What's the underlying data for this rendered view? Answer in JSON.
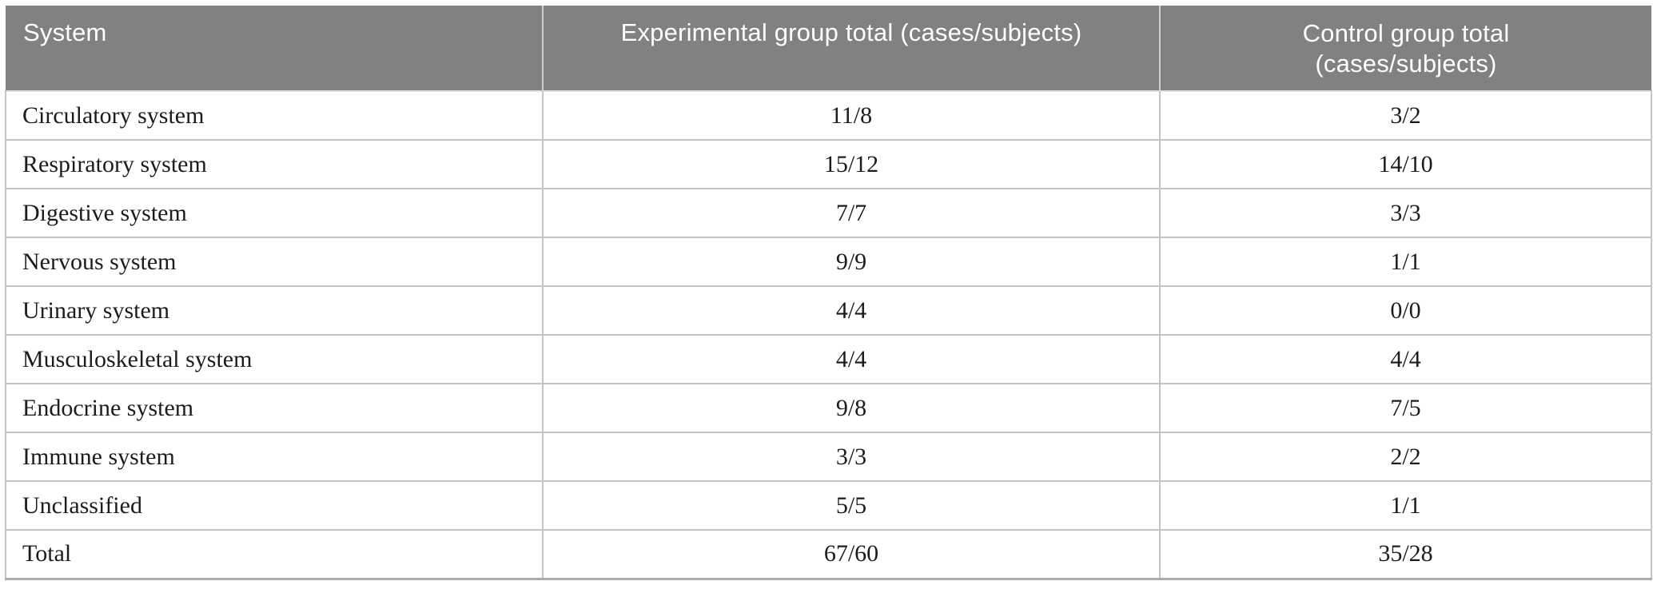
{
  "table": {
    "columns": [
      {
        "label": "System"
      },
      {
        "label": "Experimental group total (cases/subjects)"
      },
      {
        "label": "Control group total (cases/subjects)"
      }
    ],
    "rows": [
      {
        "system": "Circulatory system",
        "experimental": "11/8",
        "control": "3/2"
      },
      {
        "system": "Respiratory system",
        "experimental": "15/12",
        "control": "14/10"
      },
      {
        "system": "Digestive system",
        "experimental": "7/7",
        "control": "3/3"
      },
      {
        "system": "Nervous system",
        "experimental": "9/9",
        "control": "1/1"
      },
      {
        "system": "Urinary system",
        "experimental": "4/4",
        "control": "0/0"
      },
      {
        "system": "Musculoskeletal system",
        "experimental": "4/4",
        "control": "4/4"
      },
      {
        "system": "Endocrine system",
        "experimental": "9/8",
        "control": "7/5"
      },
      {
        "system": "Immune system",
        "experimental": "3/3",
        "control": "2/2"
      },
      {
        "system": "Unclassified",
        "experimental": "5/5",
        "control": "1/1"
      },
      {
        "system": "Total",
        "experimental": "67/60",
        "control": "35/28"
      }
    ],
    "colors": {
      "header_bg": "#818181",
      "header_text": "#ffffff",
      "row_border": "#c4c4c4",
      "bottom_border": "#ababab",
      "body_text": "#1c1c1c"
    }
  }
}
